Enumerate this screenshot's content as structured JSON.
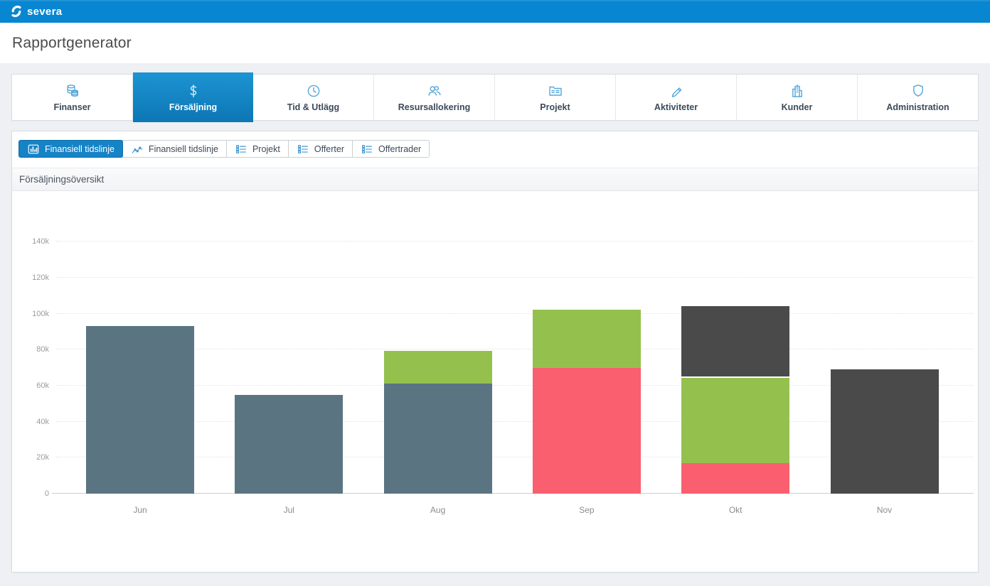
{
  "topbar": {
    "logo_text": "severa",
    "color": "#0886d1"
  },
  "page": {
    "title": "Rapportgenerator"
  },
  "main_tabs": {
    "items": [
      {
        "label": "Finanser",
        "icon": "coins-icon",
        "selected": false
      },
      {
        "label": "Försäljning",
        "icon": "dollar-icon",
        "selected": true
      },
      {
        "label": "Tid & Utlägg",
        "icon": "clock-icon",
        "selected": false
      },
      {
        "label": "Resursallokering",
        "icon": "users-icon",
        "selected": false
      },
      {
        "label": "Projekt",
        "icon": "folder-icon",
        "selected": false
      },
      {
        "label": "Aktiviteter",
        "icon": "pen-icon",
        "selected": false
      },
      {
        "label": "Kunder",
        "icon": "building-icon",
        "selected": false
      },
      {
        "label": "Administration",
        "icon": "shield-icon",
        "selected": false
      }
    ]
  },
  "sub_tabs": {
    "items": [
      {
        "label": "Finansiell tidslinje",
        "icon": "bar-chart-icon",
        "selected": true
      },
      {
        "label": "Finansiell tidslinje",
        "icon": "line-chart-icon",
        "selected": false
      },
      {
        "label": "Projekt",
        "icon": "table-icon",
        "selected": false
      },
      {
        "label": "Offerter",
        "icon": "table-icon",
        "selected": false
      },
      {
        "label": "Offertrader",
        "icon": "table-icon",
        "selected": false
      }
    ]
  },
  "section": {
    "title": "Försäljningsöversikt"
  },
  "chart_data": {
    "type": "bar",
    "stacked": true,
    "title": "Försäljningsöversikt",
    "categories": [
      "Jun",
      "Jul",
      "Aug",
      "Sep",
      "Okt",
      "Nov"
    ],
    "series": [
      {
        "name": "segment-slate",
        "color": "#5a7482",
        "values": [
          93000,
          55000,
          61000,
          0,
          0,
          0
        ]
      },
      {
        "name": "segment-red",
        "color": "#fa5f6f",
        "values": [
          0,
          0,
          0,
          70000,
          17000,
          0
        ]
      },
      {
        "name": "segment-green",
        "color": "#94c14e",
        "values": [
          0,
          0,
          19000,
          33000,
          48000,
          0
        ]
      },
      {
        "name": "segment-dark",
        "color": "#4a4a4a",
        "values": [
          0,
          0,
          0,
          0,
          40000,
          69000
        ]
      }
    ],
    "totals": [
      93000,
      55000,
      80000,
      103000,
      105000,
      69000
    ],
    "y_ticks": [
      "0",
      "20k",
      "40k",
      "60k",
      "80k",
      "100k",
      "120k",
      "140k"
    ],
    "y_tick_values": [
      0,
      20000,
      40000,
      60000,
      80000,
      100000,
      120000,
      140000
    ],
    "ylim": [
      0,
      165000
    ],
    "xlabel": "",
    "ylabel": "",
    "grid": "horizontal-dotted",
    "legend": "none"
  },
  "colors": {
    "topbar_blue": "#0886d1",
    "selected_tab_gradient_top": "#1d94d3",
    "selected_tab_gradient_bottom": "#0d76b4",
    "subtab_selected": "#1583c6",
    "tab_icon_blue": "#55a7d9",
    "page_background": "#eef0f3",
    "bar_slate": "#5a7482",
    "bar_red": "#fa5f6f",
    "bar_green": "#94c14e",
    "bar_dark": "#4a4a4a"
  }
}
